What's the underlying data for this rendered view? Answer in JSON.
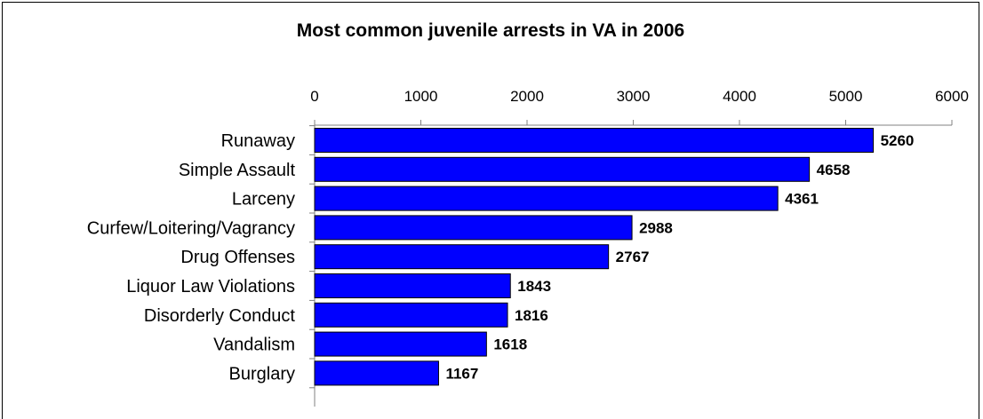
{
  "chart_data": {
    "type": "bar",
    "orientation": "horizontal",
    "title": "Most common juvenile arrests in VA in 2006",
    "xlabel": "",
    "ylabel": "",
    "xlim": [
      0,
      6000
    ],
    "x_ticks": [
      "0",
      "1000",
      "2000",
      "3000",
      "4000",
      "5000",
      "6000"
    ],
    "x_axis_position": "top",
    "grid": false,
    "legend": "none",
    "categories": [
      "Runaway",
      "Simple Assault",
      "Larceny",
      "Curfew/Loitering/Vagrancy",
      "Drug Offenses",
      "Liquor Law Violations",
      "Disorderly Conduct",
      "Vandalism",
      "Burglary"
    ],
    "values": [
      5260,
      4658,
      4361,
      2988,
      2767,
      1843,
      1816,
      1618,
      1167
    ],
    "data_labels": [
      "5260",
      "4658",
      "4361",
      "2988",
      "2767",
      "1843",
      "1816",
      "1618",
      "1167"
    ],
    "bar_color": "#0000FF",
    "bar_outline_color": "#000000"
  }
}
